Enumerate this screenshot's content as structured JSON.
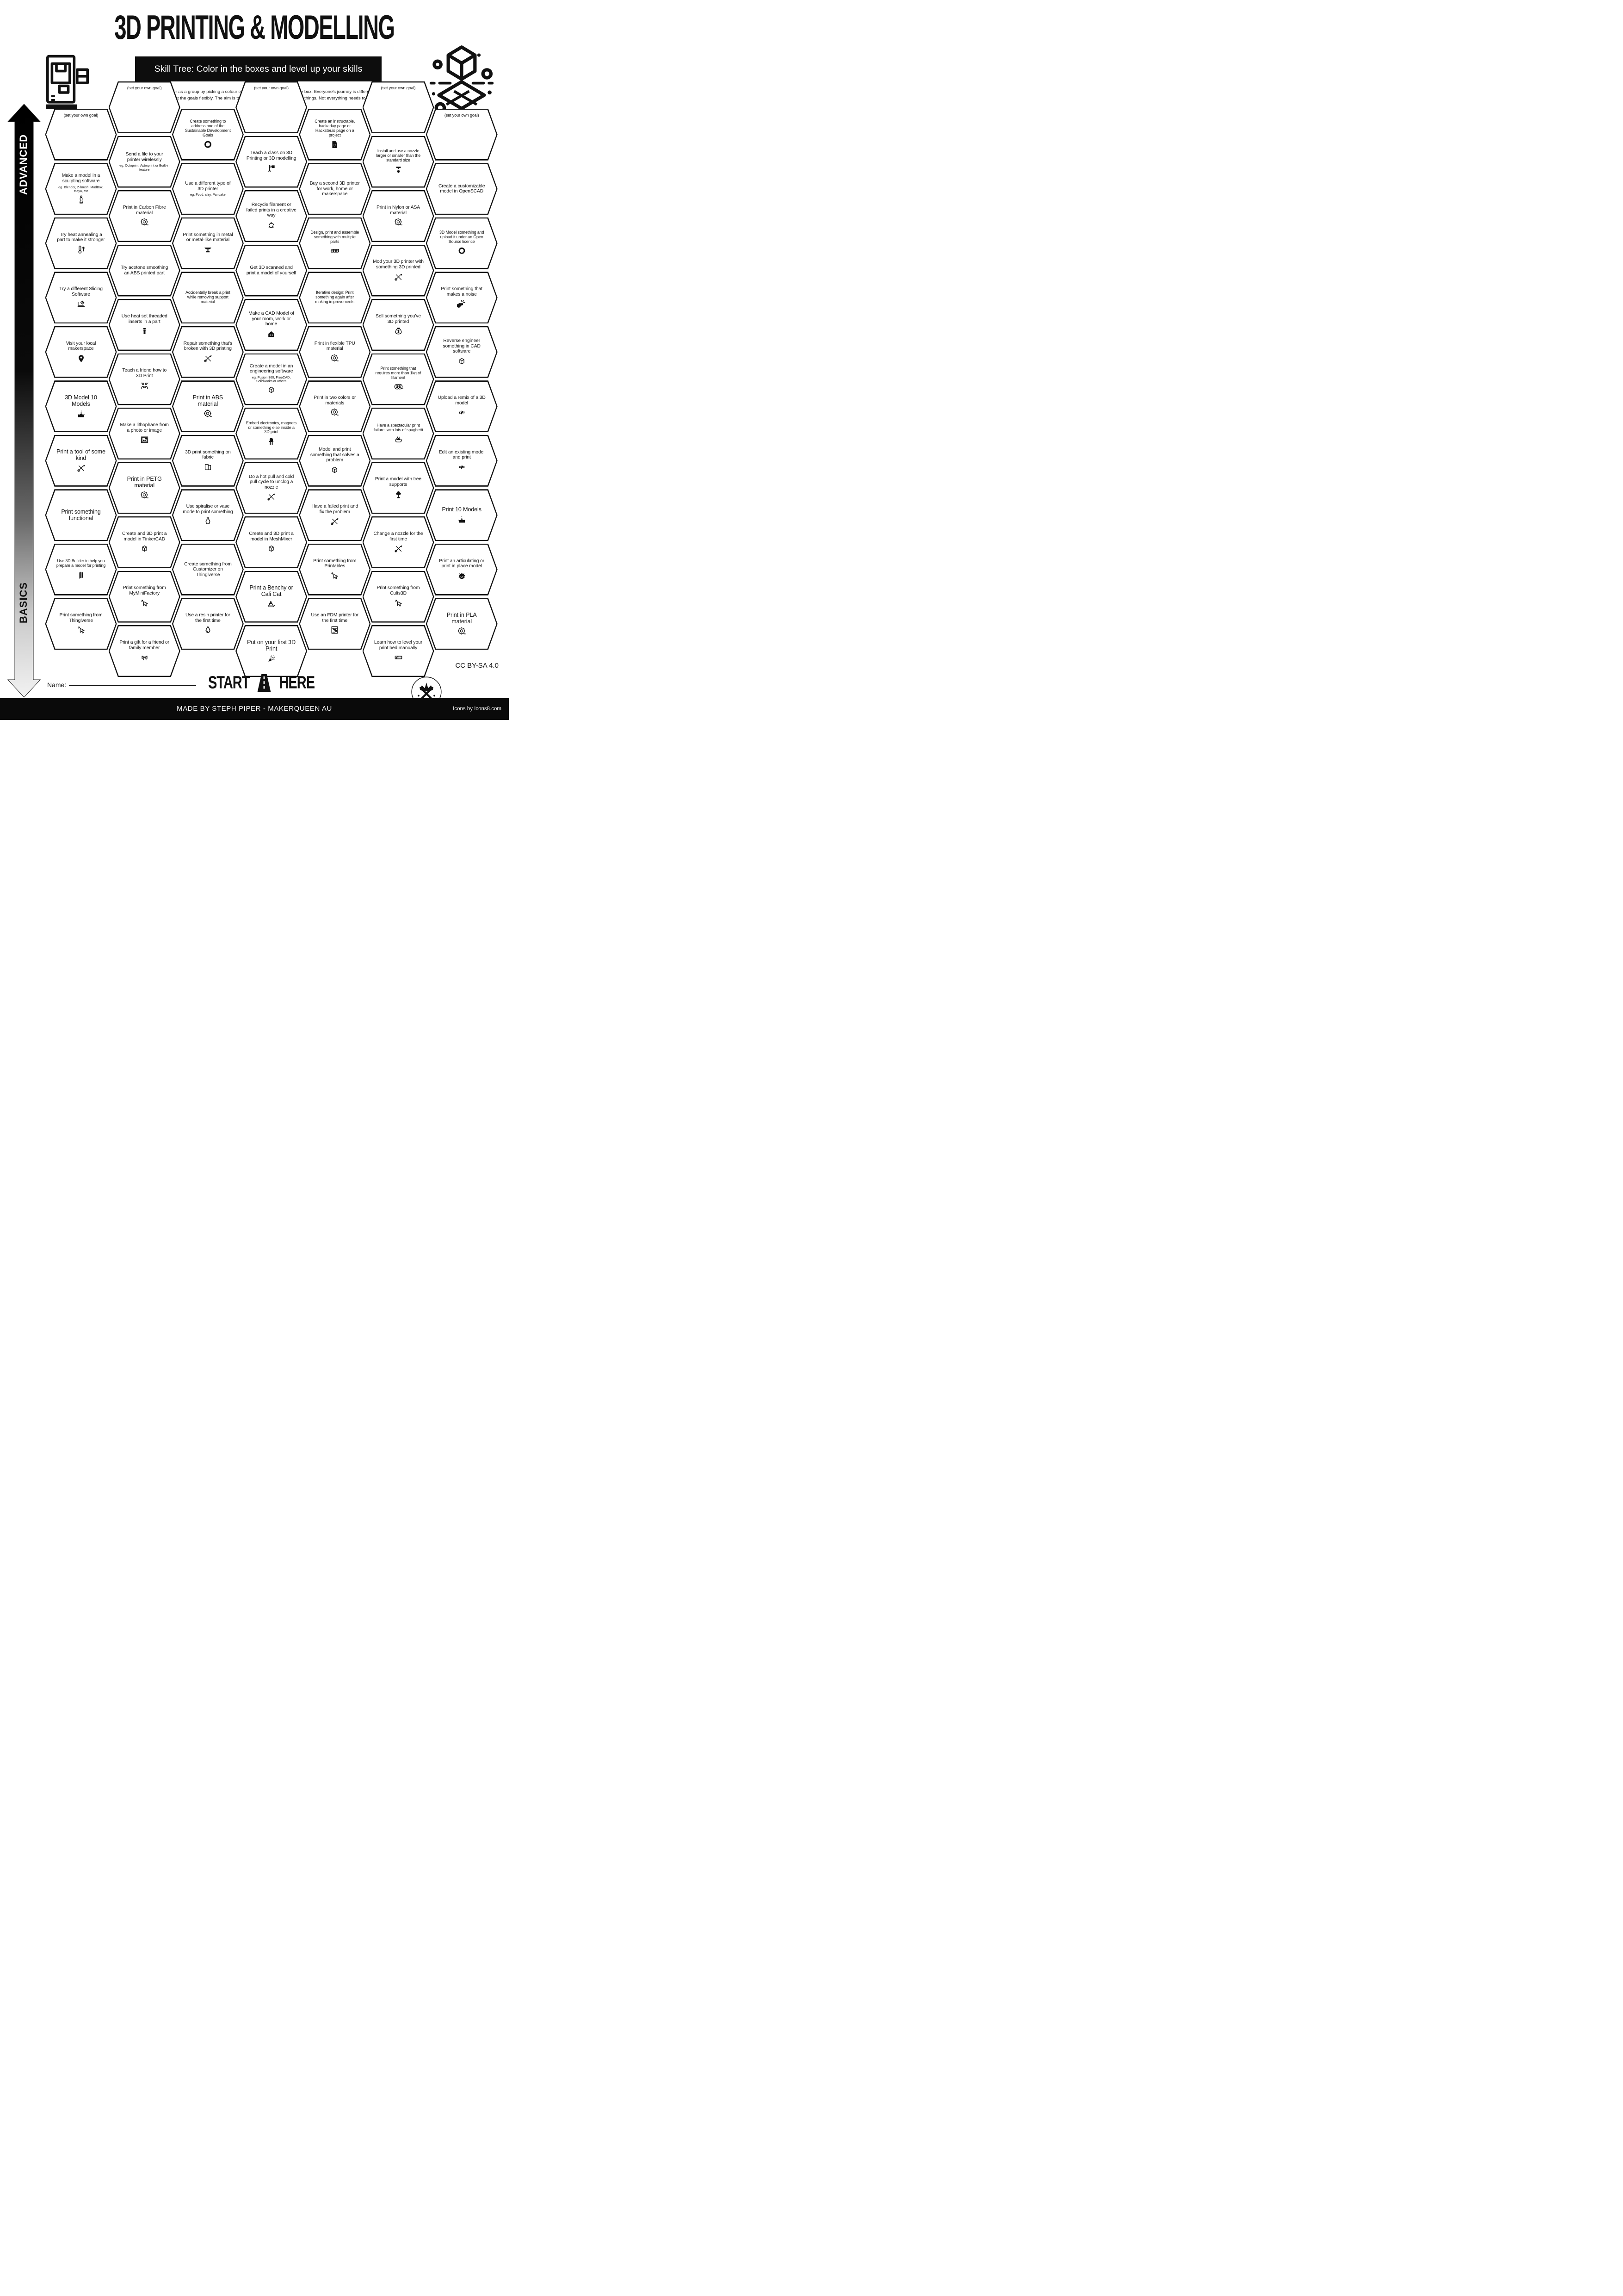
{
  "header": {
    "title": "3D PRINTING & MODELLING",
    "subtitle": "Skill Tree:  Color in the boxes and level up your skills",
    "description": "Use for individuals or as a group by picking a colour each and coloring in a part of the box.  Everyone's journey is different and you can interpret the goals flexibly.  The aim is to inspire you to learn and try new things. Not everything needs to be completed.",
    "logo_left": "printer-3d-icon",
    "logo_right": "cube-grid-icon"
  },
  "levels": {
    "top": "ADVANCED",
    "bottom": "BASICS"
  },
  "start": {
    "start_label": "START",
    "here_label": "HERE",
    "icon": "road-icon"
  },
  "name_label": "Name:",
  "footer": {
    "credit": "MADE BY STEPH PIPER  -  MAKERQUEEN AU",
    "license": "CC BY-SA 4.0",
    "icons_credit": "Icons by Icons8.com",
    "badge_icon": "makerqueen-badge-icon"
  },
  "colors": {
    "ink": "#111111",
    "paper": "#ffffff"
  },
  "cells": [
    {
      "col": 1,
      "row": 0,
      "goal": true,
      "title": "(set your own goal)"
    },
    {
      "col": 1,
      "row": 1,
      "title": "Make a model in a sculpting software",
      "sub": "eg. Blender, Z-brush, MudBox, Maya, etc",
      "icon": "statue-icon"
    },
    {
      "col": 1,
      "row": 2,
      "title": "Try heat annealing a part to make it stronger",
      "icon": "thermometer-up-icon"
    },
    {
      "col": 1,
      "row": 3,
      "title": "Try a different Slicing Software",
      "icon": "slicer-laptop-icon"
    },
    {
      "col": 1,
      "row": 4,
      "title": "Visit your local makerspace",
      "icon": "map-pin-icon"
    },
    {
      "col": 1,
      "row": 5,
      "title": "3D Model 10 Models",
      "icon": "cake-icon"
    },
    {
      "col": 1,
      "row": 6,
      "title": "Print a tool of some kind",
      "icon": "crossed-tools-icon"
    },
    {
      "col": 1,
      "row": 7,
      "title": "Print something functional"
    },
    {
      "col": 1,
      "row": 8,
      "title": "Use 3D Builder to help you prepare a model for printing",
      "icon": "3d-builder-icon"
    },
    {
      "col": 1,
      "row": 9,
      "title": "Print something from Thingiverse",
      "icon": "cursor-icon"
    },
    {
      "col": 2,
      "row": 0,
      "goal": true,
      "title": "(set your own goal)"
    },
    {
      "col": 2,
      "row": 1,
      "title": "Send a file to your printer wirelessly",
      "sub": "eg. Octoprint, Astroprint or Built-in feature"
    },
    {
      "col": 2,
      "row": 2,
      "title": "Print in Carbon Fibre material",
      "icon": "filament-spool-icon"
    },
    {
      "col": 2,
      "row": 3,
      "title": "Try acetone smoothing an ABS printed part"
    },
    {
      "col": 2,
      "row": 4,
      "title": "Use heat set threaded inserts in a part",
      "icon": "threaded-insert-icon"
    },
    {
      "col": 2,
      "row": 5,
      "title": "Teach a friend how to 3D Print",
      "icon": "teach-friend-icon"
    },
    {
      "col": 2,
      "row": 6,
      "title": "Make a lithophane from a photo or image",
      "icon": "photo-icon"
    },
    {
      "col": 2,
      "row": 7,
      "title": "Print in PETG material",
      "icon": "filament-spool-icon"
    },
    {
      "col": 2,
      "row": 8,
      "title": "Create and 3D print a model in TinkerCAD",
      "icon": "cad-cube-icon"
    },
    {
      "col": 2,
      "row": 9,
      "title": "Print something from MyMiniFactory",
      "icon": "cursor-icon"
    },
    {
      "col": 2,
      "row": 10,
      "title": "Print a gift for a friend or family member",
      "icon": "gift-bow-icon"
    },
    {
      "col": 3,
      "row": 0,
      "title": "Create something to address one of the Sustainable Development Goals",
      "icon": "sdg-wheel-icon"
    },
    {
      "col": 3,
      "row": 1,
      "title": "Use a different type of 3D printer",
      "sub": "eg. Food, clay, Pancake"
    },
    {
      "col": 3,
      "row": 2,
      "title": "Print something in metal or metal-like material",
      "icon": "anvil-icon"
    },
    {
      "col": 3,
      "row": 3,
      "title": "Accidentally break a print while removing support material"
    },
    {
      "col": 3,
      "row": 4,
      "title": "Repair something that's broken with 3D printing",
      "icon": "crossed-tools-icon"
    },
    {
      "col": 3,
      "row": 5,
      "title": "Print in ABS material",
      "icon": "filament-spool-icon"
    },
    {
      "col": 3,
      "row": 6,
      "title": "3D print something on fabric",
      "icon": "fabric-icon"
    },
    {
      "col": 3,
      "row": 7,
      "title": "Use spiralise or vase mode to print something",
      "icon": "vase-icon"
    },
    {
      "col": 3,
      "row": 8,
      "title": "Create something from Customizer on Thingiverse"
    },
    {
      "col": 3,
      "row": 9,
      "title": "Use a resin printer for the first time",
      "icon": "resin-drop-icon"
    },
    {
      "col": 4,
      "row": 0,
      "goal": true,
      "title": "(set your own goal)"
    },
    {
      "col": 4,
      "row": 1,
      "title": "Teach a class on 3D Printing or 3D modelling",
      "icon": "teacher-board-icon"
    },
    {
      "col": 4,
      "row": 2,
      "title": "Recycle filament or failed prints in a creative way",
      "icon": "recycle-icon"
    },
    {
      "col": 4,
      "row": 3,
      "title": "Get 3D scanned and print a model of yourself"
    },
    {
      "col": 4,
      "row": 4,
      "title": "Make a CAD Model of your room, work or home",
      "icon": "house-icon"
    },
    {
      "col": 4,
      "row": 5,
      "title": "Create a model in an engineering software",
      "sub": "eg. Fusion 360, FreeCAD, Solidworks or others",
      "icon": "cad-cube-icon"
    },
    {
      "col": 4,
      "row": 6,
      "title": "Embed electronics, magnets or something else inside a 3D print",
      "icon": "led-icon"
    },
    {
      "col": 4,
      "row": 7,
      "title": "Do a hot pull and cold pull cycle to unclog a nozzle",
      "icon": "crossed-tools-icon"
    },
    {
      "col": 4,
      "row": 8,
      "title": "Create and 3D print a model in MeshMixer",
      "icon": "cad-cube-icon"
    },
    {
      "col": 4,
      "row": 9,
      "title": "Print a Benchy or Cali Cat",
      "icon": "benchy-icon"
    },
    {
      "col": 4,
      "row": 10,
      "title": "Put on your first 3D Print",
      "icon": "party-popper-icon"
    },
    {
      "col": 5,
      "row": 0,
      "title": "Create an instructable, hackaday page or Hackster.io page on a project",
      "icon": "project-page-icon"
    },
    {
      "col": 5,
      "row": 1,
      "title": "Buy a second 3D printer for work, home or makerspace"
    },
    {
      "col": 5,
      "row": 2,
      "title": "Design, print and assemble something with multiple parts",
      "icon": "three-cubes-icon"
    },
    {
      "col": 5,
      "row": 3,
      "title": "Iterative design: Print something again after making improvements"
    },
    {
      "col": 5,
      "row": 4,
      "title": "Print in flexible TPU material",
      "icon": "filament-spool-icon"
    },
    {
      "col": 5,
      "row": 5,
      "title": "Print in two colors or materials",
      "icon": "filament-spool-icon"
    },
    {
      "col": 5,
      "row": 6,
      "title": "Model and print something that solves a problem",
      "icon": "cad-cube-icon"
    },
    {
      "col": 5,
      "row": 7,
      "title": "Have a failed print and fix the problem",
      "icon": "crossed-tools-icon"
    },
    {
      "col": 5,
      "row": 8,
      "title": "Print something from Printables",
      "icon": "cursor-icon"
    },
    {
      "col": 5,
      "row": 9,
      "title": "Use an FDM printer for the first time",
      "icon": "fdm-printer-icon"
    },
    {
      "col": 6,
      "row": 0,
      "goal": true,
      "title": "(set your own goal)"
    },
    {
      "col": 6,
      "row": 1,
      "title": "Install and use a nozzle larger or smaller than the standard size",
      "icon": "nozzle-icon"
    },
    {
      "col": 6,
      "row": 2,
      "title": "Print in Nylon or ASA material",
      "icon": "filament-spool-icon"
    },
    {
      "col": 6,
      "row": 3,
      "title": "Mod your 3D printer with something 3D printed",
      "icon": "crossed-tools-icon"
    },
    {
      "col": 6,
      "row": 4,
      "title": "Sell something you've 3D printed",
      "icon": "money-bag-icon"
    },
    {
      "col": 6,
      "row": 5,
      "title": "Print something that requires more than 1kg of filament",
      "icon": "filament-spools-icon"
    },
    {
      "col": 6,
      "row": 6,
      "title": "Have a spectacular print failure, with lots of spaghetti",
      "icon": "spaghetti-icon"
    },
    {
      "col": 6,
      "row": 7,
      "title": "Print a model with tree supports",
      "icon": "tree-icon"
    },
    {
      "col": 6,
      "row": 8,
      "title": "Change a nozzle for the first time",
      "icon": "crossed-tools-icon"
    },
    {
      "col": 6,
      "row": 9,
      "title": "Print something from Cults3D",
      "icon": "cursor-icon"
    },
    {
      "col": 6,
      "row": 10,
      "title": "Learn how to level your print bed manually",
      "icon": "ruler-icon"
    },
    {
      "col": 7,
      "row": 0,
      "goal": true,
      "title": "(set your own goal)"
    },
    {
      "col": 7,
      "row": 1,
      "title": "Create a customizable model in OpenSCAD"
    },
    {
      "col": 7,
      "row": 2,
      "title": "3D Model something and upload it under an Open Source licence",
      "icon": "open-source-icon"
    },
    {
      "col": 7,
      "row": 3,
      "title": "Print something that makes a noise",
      "icon": "whistle-icon"
    },
    {
      "col": 7,
      "row": 4,
      "title": "Reverse engineer something in CAD software",
      "icon": "cad-cube-icon"
    },
    {
      "col": 7,
      "row": 5,
      "title": "Upload a remix of a 3D model",
      "icon": "remix-icon"
    },
    {
      "col": 7,
      "row": 6,
      "title": "Edit an existing model and print",
      "icon": "remix-icon"
    },
    {
      "col": 7,
      "row": 7,
      "title": "Print 10 Models",
      "icon": "cake-icon"
    },
    {
      "col": 7,
      "row": 8,
      "title": "Print an articulating or print in place model",
      "icon": "dragon-icon"
    },
    {
      "col": 7,
      "row": 9,
      "title": "Print in PLA material",
      "icon": "filament-spool-icon"
    }
  ]
}
